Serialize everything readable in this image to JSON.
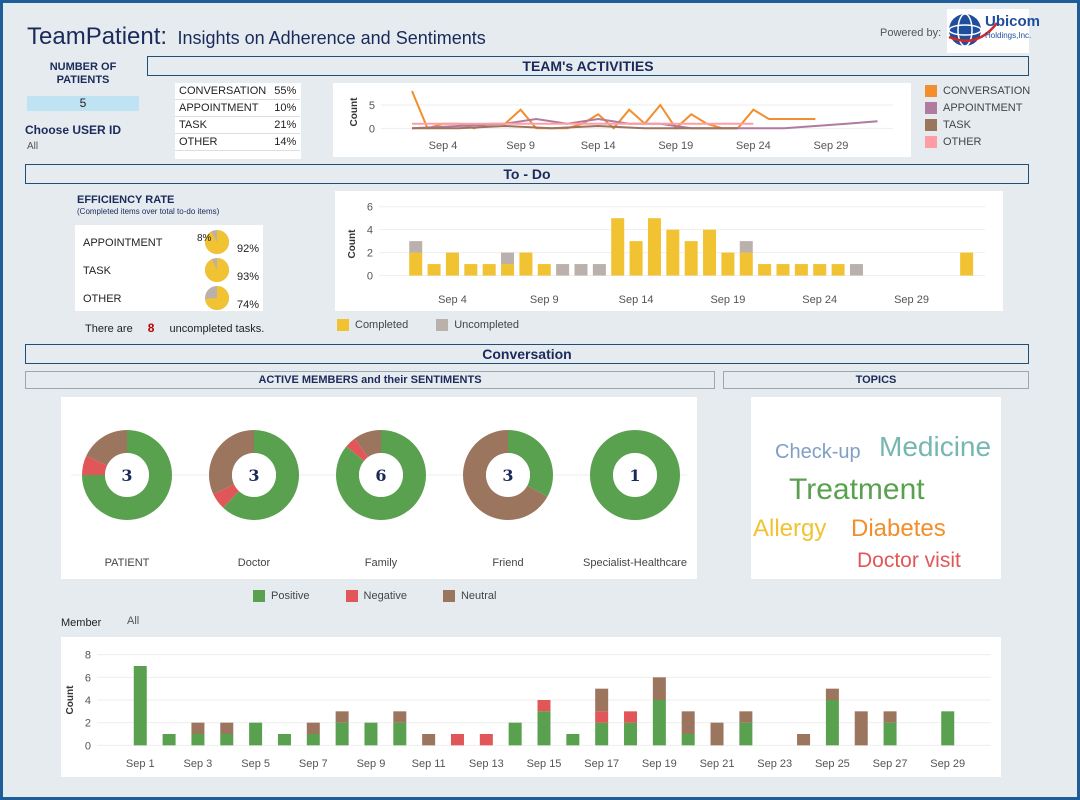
{
  "header": {
    "app_name": "TeamPatient",
    "colon": ":",
    "subtitle": "Insights on Adherence and Sentiments",
    "powered_by": "Powered by:",
    "logo_line1": "Ubicom",
    "logo_line2": "Holdings,Inc."
  },
  "left_panel": {
    "patients_label": "NUMBER OF PATIENTS",
    "patients_value": "5",
    "user_label": "Choose USER ID",
    "user_value": "All"
  },
  "sections": {
    "activities": "TEAM's ACTIVITIES",
    "todo": "To - Do",
    "conversation": "Conversation",
    "members": "ACTIVE MEMBERS and their SENTIMENTS",
    "topics": "TOPICS"
  },
  "activity_share": [
    {
      "name": "CONVERSATION",
      "pct": "55%"
    },
    {
      "name": "APPOINTMENT",
      "pct": "10%"
    },
    {
      "name": "TASK",
      "pct": "21%"
    },
    {
      "name": "OTHER",
      "pct": "14%"
    }
  ],
  "activity_legend": [
    {
      "name": "CONVERSATION",
      "color": "#f28e2b"
    },
    {
      "name": "APPOINTMENT",
      "color": "#b07aa1"
    },
    {
      "name": "TASK",
      "color": "#9c755f"
    },
    {
      "name": "OTHER",
      "color": "#ff9da7"
    }
  ],
  "efficiency": {
    "title": "EFFICIENCY RATE",
    "subtitle": "(Completed items over total to-do items)",
    "rows": [
      {
        "name": "APPOINTMENT",
        "rate": 0.92,
        "rate_label": "92%",
        "rest_label": "8%"
      },
      {
        "name": "TASK",
        "rate": 0.93,
        "rate_label": "93%",
        "rest_label": ""
      },
      {
        "name": "OTHER",
        "rate": 0.74,
        "rate_label": "74%",
        "rest_label": ""
      }
    ],
    "pre": "There are",
    "count": "8",
    "post": "uncompleted tasks."
  },
  "todo_legend": [
    {
      "name": "Completed",
      "color": "#f1c232"
    },
    {
      "name": "Uncompleted",
      "color": "#bab0ac"
    }
  ],
  "donuts": [
    {
      "name": "PATIENT",
      "count": "3",
      "positive": 0.75,
      "negative": 0.07,
      "neutral": 0.18
    },
    {
      "name": "Doctor",
      "count": "3",
      "positive": 0.62,
      "negative": 0.06,
      "neutral": 0.32
    },
    {
      "name": "Family",
      "count": "6",
      "positive": 0.86,
      "negative": 0.04,
      "neutral": 0.1
    },
    {
      "name": "Friend",
      "count": "3",
      "positive": 0.33,
      "negative": 0.0,
      "neutral": 0.67
    },
    {
      "name": "Specialist-Healthcare",
      "count": "1",
      "positive": 1.0,
      "negative": 0.0,
      "neutral": 0.0
    }
  ],
  "sentiment_legend": [
    {
      "name": "Positive",
      "color": "#59a14f"
    },
    {
      "name": "Negative",
      "color": "#e15759"
    },
    {
      "name": "Neutral",
      "color": "#9c755f"
    }
  ],
  "topics": [
    {
      "word": "Check-up",
      "color": "#7f9fc6"
    },
    {
      "word": "Medicine",
      "color": "#76b7b2"
    },
    {
      "word": "Treatment",
      "color": "#59a14f"
    },
    {
      "word": "Allergy",
      "color": "#f1c232"
    },
    {
      "word": "Diabetes",
      "color": "#f28e2b"
    },
    {
      "word": "Doctor visit",
      "color": "#e15759"
    }
  ],
  "member_filter": {
    "label": "Member",
    "value": "All"
  },
  "chart_data": [
    {
      "type": "line",
      "ylabel": "Count",
      "yticks": [
        0,
        5
      ],
      "ylim": [
        -1,
        8
      ],
      "x_start_label": "Sep 1",
      "xticks": [
        "Sep 4",
        "Sep 9",
        "Sep 14",
        "Sep 19",
        "Sep 24",
        "Sep 29"
      ],
      "xtick_days": [
        4,
        9,
        14,
        19,
        24,
        29
      ],
      "xlim_days": [
        0,
        33
      ],
      "series": [
        {
          "name": "CONVERSATION",
          "color": "#f28e2b",
          "days": [
            2,
            3,
            4,
            5,
            6,
            7,
            8,
            9,
            10,
            11,
            12,
            13,
            14,
            15,
            16,
            17,
            18,
            19,
            20,
            21,
            22,
            23,
            24,
            25,
            26,
            27,
            28
          ],
          "values": [
            8,
            0,
            1,
            1,
            0,
            1,
            1,
            4,
            0,
            0,
            0,
            1,
            3,
            0,
            4,
            1,
            5,
            0,
            3,
            1,
            0,
            0,
            4,
            2,
            2,
            2,
            2
          ]
        },
        {
          "name": "APPOINTMENT",
          "color": "#b07aa1",
          "days": [
            2,
            8,
            10,
            12,
            14,
            16,
            18,
            20,
            22,
            24,
            26,
            28,
            30,
            32
          ],
          "values": [
            0,
            1,
            2,
            1,
            2,
            1,
            1,
            0,
            0,
            0,
            0,
            0.5,
            1,
            1.5
          ]
        },
        {
          "name": "TASK",
          "color": "#9c755f",
          "days": [
            2,
            5,
            8,
            11,
            14,
            17,
            20,
            23
          ],
          "values": [
            0,
            0,
            0.5,
            0,
            0.5,
            0,
            0,
            0
          ]
        },
        {
          "name": "OTHER",
          "color": "#ff9da7",
          "days": [
            2,
            5,
            8,
            11,
            14,
            17,
            20,
            23,
            24
          ],
          "values": [
            1,
            1,
            1,
            1,
            1,
            1,
            1,
            1,
            1
          ]
        }
      ]
    },
    {
      "type": "bar",
      "stacked": true,
      "ylabel": "Count",
      "yticks": [
        0,
        2,
        4,
        6
      ],
      "ylim": [
        -1,
        6.5
      ],
      "xticks": [
        "Sep 4",
        "Sep 9",
        "Sep 14",
        "Sep 19",
        "Sep 24",
        "Sep 29"
      ],
      "xtick_days": [
        4,
        9,
        14,
        19,
        24,
        29
      ],
      "xlim_days": [
        0,
        33
      ],
      "series": [
        {
          "name": "Completed",
          "color": "#f1c232",
          "days": [
            2,
            3,
            4,
            5,
            6,
            7,
            8,
            9,
            10,
            11,
            12,
            13,
            14,
            15,
            16,
            17,
            18,
            19,
            20,
            21,
            22,
            23,
            24,
            25,
            26,
            32
          ],
          "values": [
            2,
            1,
            2,
            1,
            1,
            1,
            2,
            1,
            0,
            0,
            0,
            5,
            3,
            5,
            4,
            3,
            4,
            2,
            2,
            1,
            1,
            1,
            1,
            1,
            0,
            2
          ]
        },
        {
          "name": "Uncompleted",
          "color": "#bab0ac",
          "days": [
            2,
            3,
            4,
            5,
            6,
            7,
            8,
            9,
            10,
            11,
            12,
            13,
            14,
            15,
            16,
            17,
            18,
            19,
            20,
            21,
            22,
            23,
            24,
            25,
            26,
            32
          ],
          "values": [
            1,
            0,
            0,
            0,
            0,
            1,
            0,
            0,
            1,
            1,
            1,
            0,
            0,
            0,
            0,
            0,
            0,
            0,
            1,
            0,
            0,
            0,
            0,
            0,
            1,
            0
          ]
        }
      ]
    },
    {
      "type": "bar",
      "stacked": true,
      "ylabel": "Count",
      "yticks": [
        0,
        2,
        4,
        6,
        8
      ],
      "ylim": [
        -0.5,
        8.5
      ],
      "xticks": [
        "Sep 1",
        "Sep 3",
        "Sep 5",
        "Sep 7",
        "Sep 9",
        "Sep 11",
        "Sep 13",
        "Sep 15",
        "Sep 17",
        "Sep 19",
        "Sep 21",
        "Sep 23",
        "Sep 25",
        "Sep 27",
        "Sep 29"
      ],
      "xtick_days": [
        1,
        3,
        5,
        7,
        9,
        11,
        13,
        15,
        17,
        19,
        21,
        23,
        25,
        27,
        29
      ],
      "xlim_days": [
        -0.5,
        30.5
      ],
      "series": [
        {
          "name": "Positive",
          "color": "#59a14f",
          "days": [
            1,
            2,
            3,
            4,
            5,
            6,
            7,
            8,
            9,
            10,
            11,
            12,
            13,
            14,
            15,
            16,
            17,
            18,
            19,
            20,
            21,
            22,
            23,
            24,
            25,
            26,
            27,
            28,
            29
          ],
          "values": [
            7,
            1,
            1,
            1,
            2,
            1,
            1,
            2,
            2,
            2,
            0,
            0,
            0,
            2,
            3,
            1,
            2,
            2,
            4,
            1,
            0,
            2,
            0,
            0,
            4,
            0,
            2,
            0,
            3
          ]
        },
        {
          "name": "Negative",
          "color": "#e15759",
          "days": [
            1,
            2,
            3,
            4,
            5,
            6,
            7,
            8,
            9,
            10,
            11,
            12,
            13,
            14,
            15,
            16,
            17,
            18,
            19,
            20,
            21,
            22,
            23,
            24,
            25,
            26,
            27,
            28,
            29
          ],
          "values": [
            0,
            0,
            0,
            0,
            0,
            0,
            0,
            0,
            0,
            0,
            0,
            1,
            1,
            0,
            1,
            0,
            1,
            1,
            0,
            0,
            0,
            0,
            0,
            0,
            0,
            0,
            0,
            0,
            0
          ]
        },
        {
          "name": "Neutral",
          "color": "#9c755f",
          "days": [
            1,
            2,
            3,
            4,
            5,
            6,
            7,
            8,
            9,
            10,
            11,
            12,
            13,
            14,
            15,
            16,
            17,
            18,
            19,
            20,
            21,
            22,
            23,
            24,
            25,
            26,
            27,
            28,
            29
          ],
          "values": [
            0,
            0,
            1,
            1,
            0,
            0,
            1,
            1,
            0,
            1,
            1,
            0,
            0,
            0,
            0,
            0,
            2,
            0,
            2,
            2,
            2,
            1,
            0,
            1,
            1,
            3,
            1,
            0,
            0
          ]
        }
      ]
    }
  ]
}
